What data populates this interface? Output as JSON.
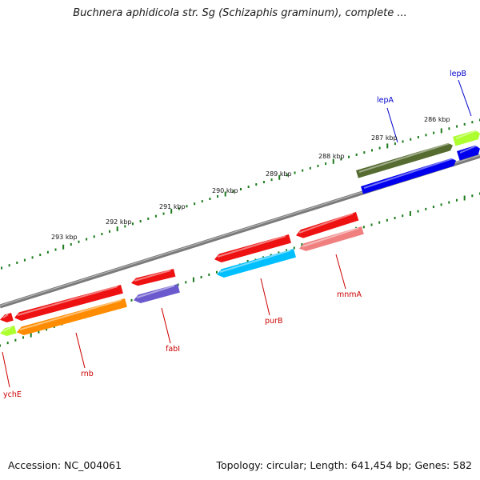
{
  "title": "Buchnera aphidicola str. Sg (Schizaphis graminum), complete ...",
  "accession": "Accession: NC_004061",
  "topology": "Topology: circular; Length: 641,454 bp; Genes: 582",
  "scale_labels": [
    "293 kbp",
    "292 kbp",
    "291 kbp",
    "290 kbp",
    "289 kbp",
    "288 kbp",
    "287 kbp",
    "286 kbp"
  ],
  "genes": [
    {
      "name": "ychE",
      "color": "#d40000",
      "strand": "-"
    },
    {
      "name": "rnb",
      "color": "#ff8c00",
      "strand": "-"
    },
    {
      "name": "fabI",
      "color": "#6a5acd",
      "strand": "-"
    },
    {
      "name": "purB",
      "color": "#00bfff",
      "strand": "-"
    },
    {
      "name": "mnmA",
      "color": "#f08080",
      "strand": "-"
    },
    {
      "name": "lepA",
      "color": "#0000ee",
      "strand": "+"
    },
    {
      "name": "lepB",
      "color": "#adff2f",
      "strand": "+"
    }
  ],
  "colors": {
    "backbone": "#808080",
    "tick": "#1a7a1a",
    "forward_label": "#0000cc",
    "reverse_label": "#cc0000",
    "gene_red": "#ee1111",
    "gene_olive": "#556b2f"
  }
}
